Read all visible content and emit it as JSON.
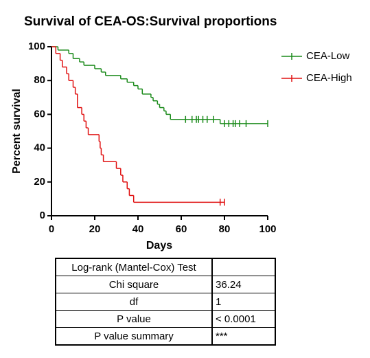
{
  "chart_data": {
    "type": "step",
    "title": "Survival of CEA-OS:Survival proportions",
    "xlabel": "Days",
    "ylabel": "Percent survival",
    "xlim": [
      0,
      100
    ],
    "ylim": [
      0,
      100
    ],
    "xticks": [
      0,
      20,
      40,
      60,
      80,
      100
    ],
    "yticks": [
      0,
      20,
      40,
      60,
      80,
      100
    ],
    "legend": "right",
    "series": [
      {
        "name": "CEA-Low",
        "color": "#1a8a1a",
        "x": [
          0,
          3,
          8,
          10,
          13,
          15,
          20,
          23,
          25,
          32,
          35,
          38,
          40,
          42,
          46,
          47,
          49,
          50,
          52,
          53,
          55,
          78,
          100
        ],
        "values": [
          100,
          98,
          96,
          93,
          91,
          89,
          87,
          85,
          83,
          81,
          79,
          77,
          75,
          72,
          70,
          68,
          66,
          64,
          62,
          60,
          57,
          54.5,
          54.5
        ],
        "censored": [
          62,
          65,
          67,
          68,
          70,
          72,
          75,
          80,
          82,
          84,
          85,
          87,
          90,
          100
        ]
      },
      {
        "name": "CEA-High",
        "color": "#e01010",
        "x": [
          0,
          2,
          4,
          5,
          7,
          8,
          10,
          11,
          12,
          14,
          15,
          16,
          17,
          22,
          22.5,
          23,
          24,
          30,
          32,
          33,
          35,
          36,
          38,
          80
        ],
        "values": [
          100,
          96,
          92,
          88,
          84,
          80,
          76,
          72,
          64,
          60,
          56,
          52,
          48,
          44,
          40,
          36,
          32,
          28,
          24,
          20,
          16,
          12,
          8,
          8
        ],
        "censored": [
          78,
          80
        ]
      }
    ]
  },
  "table": {
    "title": "Log-rank (Mantel-Cox) Test",
    "rows": [
      [
        "Chi square",
        "36.24"
      ],
      [
        "df",
        "1"
      ],
      [
        "P value",
        "< 0.0001"
      ],
      [
        "P value summary",
        "***"
      ]
    ]
  }
}
